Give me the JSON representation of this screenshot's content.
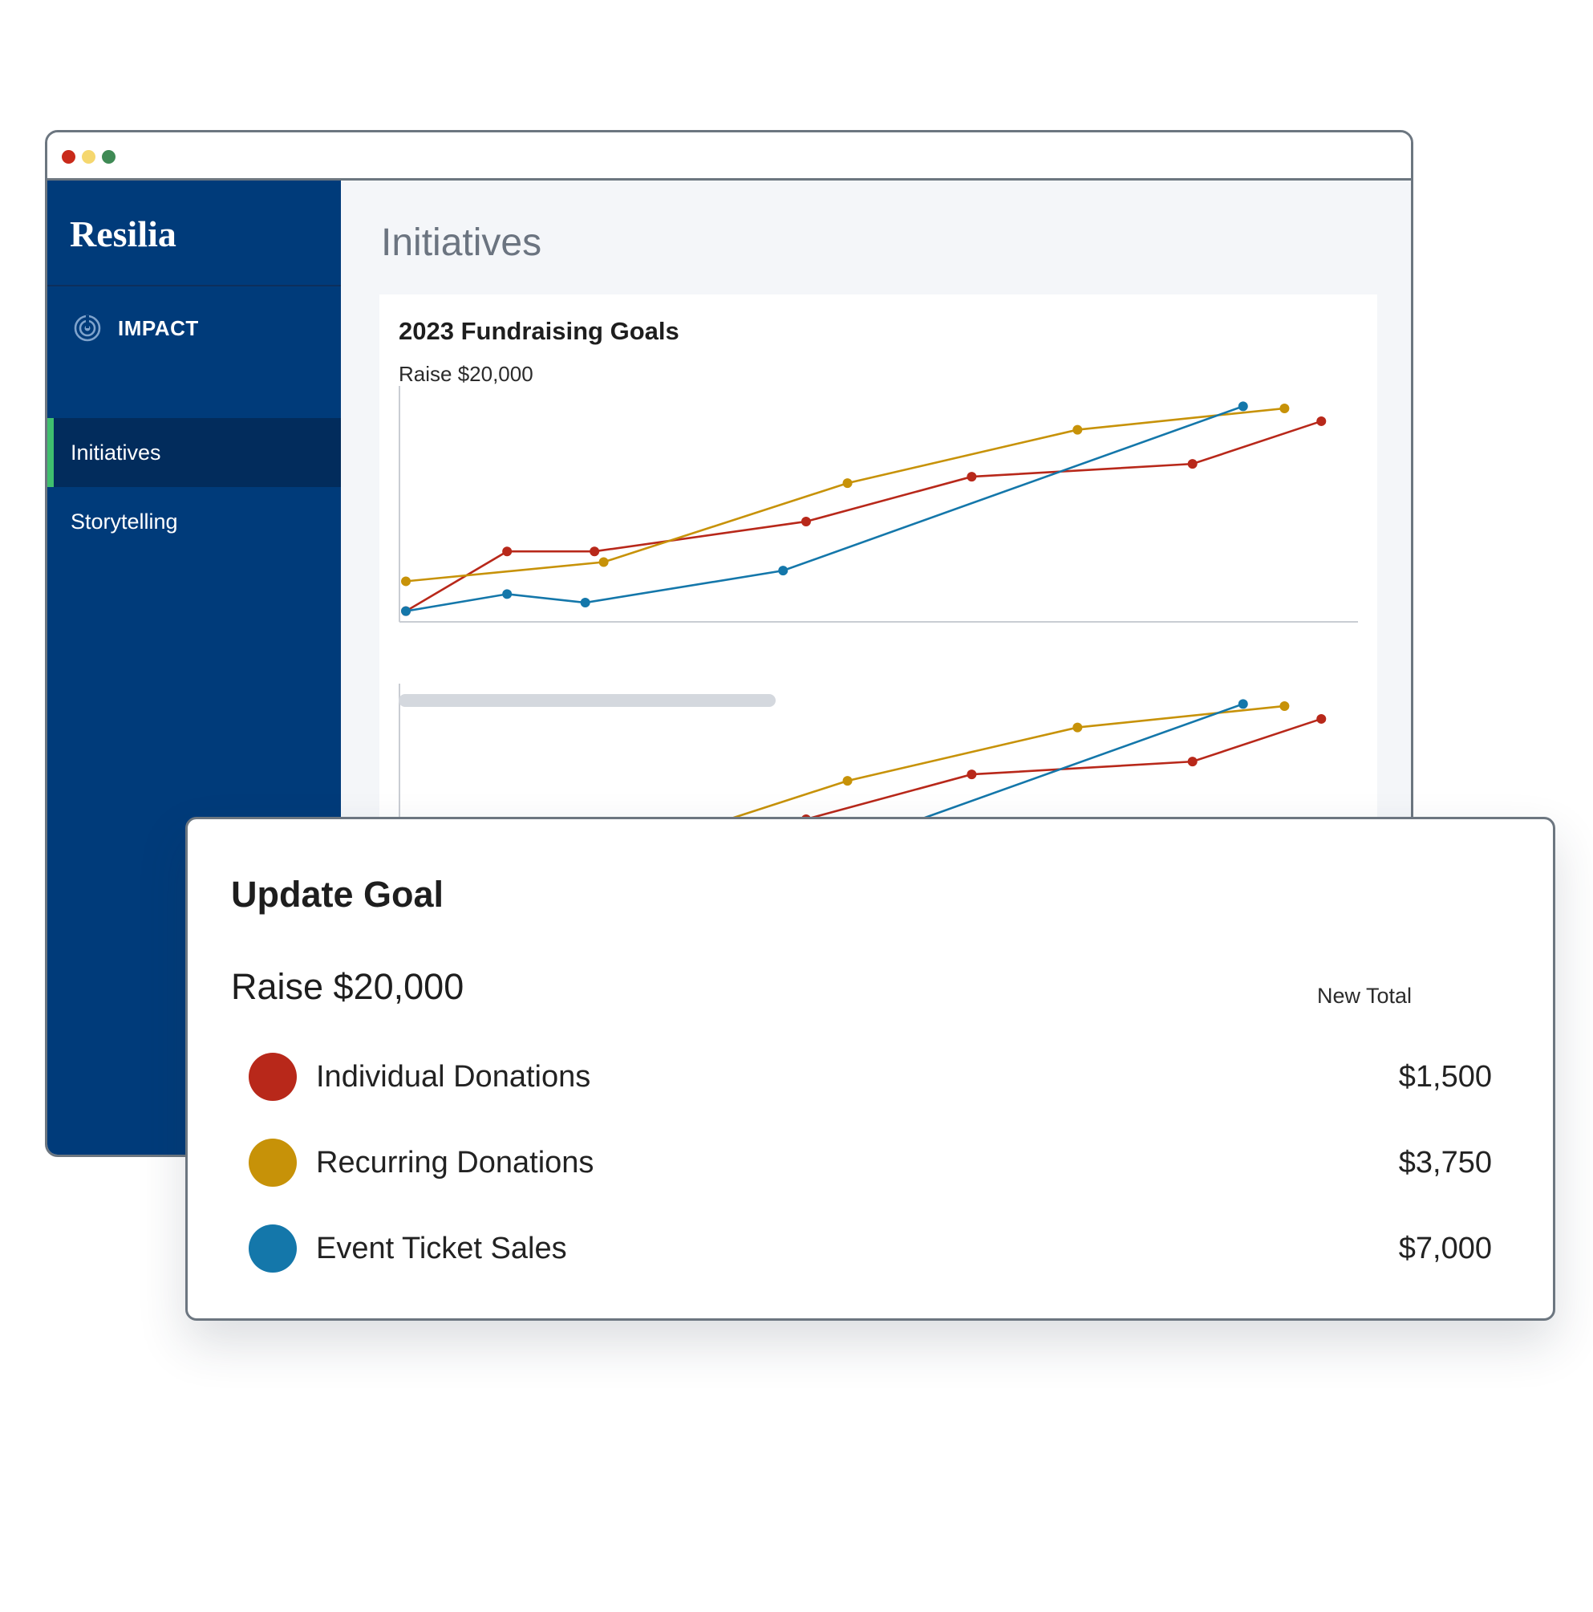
{
  "app": {
    "brand": "Resilia"
  },
  "window": {
    "controls": [
      {
        "name": "close-dot",
        "color": "#c92a1a"
      },
      {
        "name": "minimize-dot",
        "color": "#f5d76e"
      },
      {
        "name": "maximize-dot",
        "color": "#3f8a55"
      }
    ]
  },
  "sidebar": {
    "section_icon": "impact-icon",
    "section_label": "IMPACT",
    "items": [
      {
        "label": "Initiatives",
        "active": true
      },
      {
        "label": "Storytelling",
        "active": false
      }
    ]
  },
  "main": {
    "title": "Initiatives"
  },
  "card": {
    "title": "2023 Fundraising Goals",
    "subtitle": "Raise $20,000"
  },
  "colors": {
    "individual": "#b8281a",
    "recurring": "#c79208",
    "event": "#1477aa",
    "sidebar": "#003b7a",
    "active_indicator": "#3fbf6e"
  },
  "chart_data": {
    "type": "line",
    "title": "2023 Fundraising Goals",
    "subtitle": "Raise $20,000",
    "xlabel": "",
    "ylabel": "",
    "grid": false,
    "ylim": [
      0,
      100
    ],
    "series": [
      {
        "name": "Individual Donations",
        "color": "#b8281a",
        "points": [
          [
            0,
            2
          ],
          [
            11,
            30
          ],
          [
            20.5,
            30
          ],
          [
            43.5,
            44
          ],
          [
            61.5,
            65
          ],
          [
            85.5,
            71
          ],
          [
            99.5,
            91
          ]
        ]
      },
      {
        "name": "Recurring Donations",
        "color": "#c79208",
        "points": [
          [
            0,
            16
          ],
          [
            21.5,
            25
          ],
          [
            48,
            62
          ],
          [
            73,
            87
          ],
          [
            95.5,
            97
          ]
        ]
      },
      {
        "name": "Event Ticket Sales",
        "color": "#1477aa",
        "points": [
          [
            0,
            2
          ],
          [
            11,
            10
          ],
          [
            19.5,
            6
          ],
          [
            41,
            21
          ],
          [
            91,
            98
          ]
        ]
      }
    ]
  },
  "modal": {
    "title": "Update Goal",
    "goal": "Raise $20,000",
    "column_header": "New Total",
    "rows": [
      {
        "label": "Individual Donations",
        "amount": "$1,500",
        "color": "#b8281a"
      },
      {
        "label": "Recurring Donations",
        "amount": "$3,750",
        "color": "#c79208"
      },
      {
        "label": "Event Ticket Sales",
        "amount": "$7,000",
        "color": "#1477aa"
      }
    ]
  }
}
